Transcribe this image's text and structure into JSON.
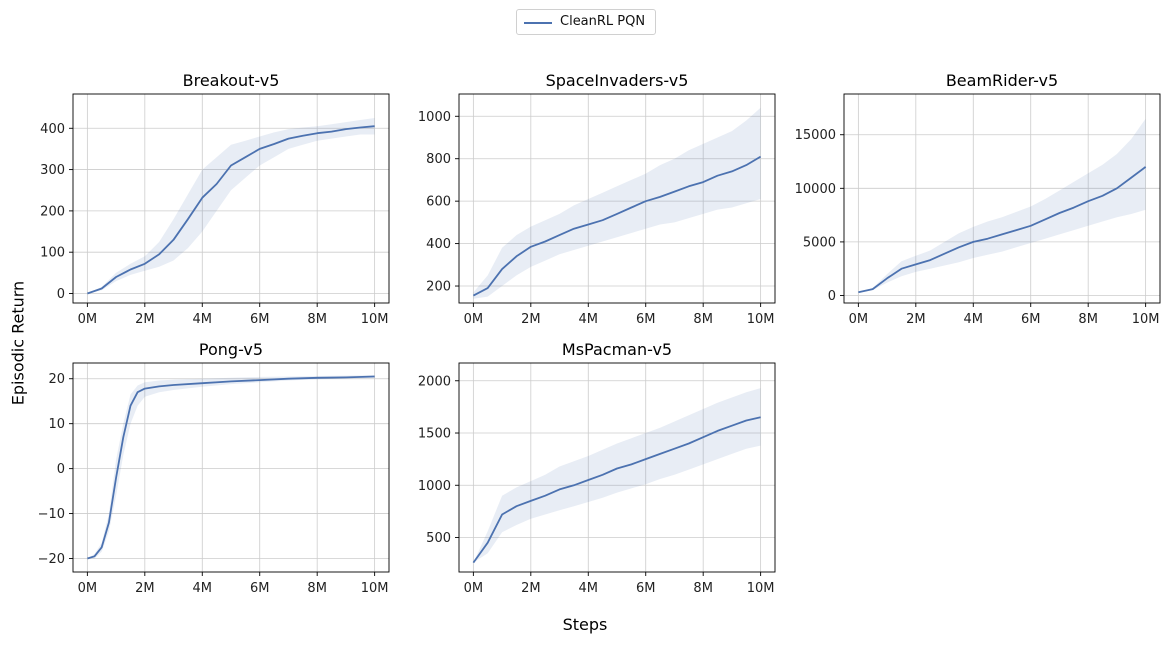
{
  "legend": {
    "label": "CleanRL PQN"
  },
  "colors": {
    "line": "#4c72b0",
    "band": "#4c72b0",
    "grid": "#cccccc"
  },
  "supxlabel": "Steps",
  "supylabel": "Episodic Return",
  "chart_data": [
    {
      "type": "line",
      "title": "Breakout-v5",
      "xlabel": "",
      "ylabel": "",
      "xlim": [
        -0.5,
        10.5
      ],
      "ylim": [
        -23,
        483
      ],
      "xticks": [
        0,
        2,
        4,
        6,
        8,
        10
      ],
      "xticklabels": [
        "0M",
        "2M",
        "4M",
        "6M",
        "8M",
        "10M"
      ],
      "yticks": [
        0,
        100,
        200,
        300,
        400
      ],
      "yticklabels": [
        "0",
        "100",
        "200",
        "300",
        "400"
      ],
      "grid": true,
      "series": [
        {
          "name": "CleanRL PQN",
          "x": [
            0,
            0.5,
            1,
            1.5,
            2,
            2.5,
            3,
            3.5,
            4,
            4.5,
            5,
            5.5,
            6,
            6.5,
            7,
            7.5,
            8,
            8.5,
            9,
            9.5,
            10
          ],
          "mean": [
            0,
            12,
            40,
            58,
            72,
            95,
            130,
            180,
            232,
            265,
            310,
            330,
            350,
            362,
            375,
            382,
            388,
            392,
            398,
            402,
            405
          ],
          "lower": [
            0,
            8,
            30,
            45,
            55,
            65,
            80,
            110,
            150,
            200,
            250,
            280,
            310,
            330,
            350,
            360,
            370,
            375,
            380,
            385,
            385
          ],
          "upper": [
            0,
            16,
            50,
            72,
            90,
            125,
            180,
            240,
            300,
            330,
            360,
            370,
            380,
            390,
            398,
            402,
            405,
            410,
            415,
            420,
            425
          ]
        }
      ]
    },
    {
      "type": "line",
      "title": "SpaceInvaders-v5",
      "xlabel": "",
      "ylabel": "",
      "xlim": [
        -0.5,
        10.5
      ],
      "ylim": [
        120,
        1105
      ],
      "xticks": [
        0,
        2,
        4,
        6,
        8,
        10
      ],
      "xticklabels": [
        "0M",
        "2M",
        "4M",
        "6M",
        "8M",
        "10M"
      ],
      "yticks": [
        200,
        400,
        600,
        800,
        1000
      ],
      "yticklabels": [
        "200",
        "400",
        "600",
        "800",
        "1000"
      ],
      "grid": true,
      "series": [
        {
          "name": "CleanRL PQN",
          "x": [
            0,
            0.5,
            1,
            1.5,
            2,
            2.5,
            3,
            3.5,
            4,
            4.5,
            5,
            5.5,
            6,
            6.5,
            7,
            7.5,
            8,
            8.5,
            9,
            9.5,
            10
          ],
          "mean": [
            155,
            190,
            280,
            340,
            385,
            410,
            440,
            470,
            490,
            510,
            540,
            570,
            600,
            620,
            645,
            670,
            690,
            720,
            740,
            770,
            810
          ],
          "lower": [
            140,
            150,
            200,
            250,
            290,
            320,
            350,
            370,
            390,
            410,
            430,
            450,
            470,
            490,
            500,
            520,
            540,
            560,
            570,
            590,
            610
          ],
          "upper": [
            170,
            250,
            380,
            440,
            480,
            510,
            540,
            580,
            610,
            640,
            670,
            700,
            730,
            770,
            800,
            840,
            870,
            900,
            930,
            980,
            1040
          ]
        }
      ]
    },
    {
      "type": "line",
      "title": "BeamRider-v5",
      "xlabel": "",
      "ylabel": "",
      "xlim": [
        -0.5,
        10.5
      ],
      "ylim": [
        -700,
        18800
      ],
      "xticks": [
        0,
        2,
        4,
        6,
        8,
        10
      ],
      "xticklabels": [
        "0M",
        "2M",
        "4M",
        "6M",
        "8M",
        "10M"
      ],
      "yticks": [
        0,
        5000,
        10000,
        15000
      ],
      "yticklabels": [
        "0",
        "5000",
        "10000",
        "15000"
      ],
      "grid": true,
      "series": [
        {
          "name": "CleanRL PQN",
          "x": [
            0,
            0.5,
            1,
            1.5,
            2,
            2.5,
            3,
            3.5,
            4,
            4.5,
            5,
            5.5,
            6,
            6.5,
            7,
            7.5,
            8,
            8.5,
            9,
            9.5,
            10
          ],
          "mean": [
            300,
            600,
            1600,
            2500,
            2900,
            3300,
            3900,
            4500,
            5000,
            5300,
            5700,
            6100,
            6500,
            7100,
            7700,
            8200,
            8800,
            9300,
            10000,
            11000,
            12000
          ],
          "lower": [
            300,
            500,
            1200,
            1800,
            2200,
            2500,
            2800,
            3100,
            3500,
            3800,
            4100,
            4500,
            4900,
            5300,
            5700,
            6100,
            6500,
            6900,
            7300,
            7600,
            8000
          ],
          "upper": [
            300,
            700,
            2000,
            3200,
            3700,
            4200,
            5000,
            5800,
            6400,
            6900,
            7300,
            7800,
            8300,
            9000,
            9800,
            10600,
            11400,
            12200,
            13200,
            14600,
            16500
          ]
        }
      ]
    },
    {
      "type": "line",
      "title": "Pong-v5",
      "xlabel": "",
      "ylabel": "",
      "xlim": [
        -0.5,
        10.5
      ],
      "ylim": [
        -23,
        23.5
      ],
      "xticks": [
        0,
        2,
        4,
        6,
        8,
        10
      ],
      "xticklabels": [
        "0M",
        "2M",
        "4M",
        "6M",
        "8M",
        "10M"
      ],
      "yticks": [
        -20,
        -10,
        0,
        10,
        20
      ],
      "yticklabels": [
        "−20",
        "−10",
        "0",
        "10",
        "20"
      ],
      "grid": true,
      "series": [
        {
          "name": "CleanRL PQN",
          "x": [
            0,
            0.25,
            0.5,
            0.75,
            1,
            1.25,
            1.5,
            1.75,
            2,
            2.5,
            3,
            4,
            5,
            6,
            7,
            8,
            9,
            10
          ],
          "mean": [
            -20,
            -19.5,
            -17.5,
            -12,
            -2,
            7,
            14,
            17,
            17.8,
            18.3,
            18.6,
            19,
            19.4,
            19.7,
            20,
            20.2,
            20.3,
            20.5
          ],
          "lower": [
            -20,
            -20,
            -18.5,
            -14,
            -6,
            3,
            10,
            14,
            16,
            17,
            17.5,
            18.2,
            18.8,
            19.2,
            19.6,
            19.9,
            20,
            20.2
          ],
          "upper": [
            -20,
            -19,
            -16.5,
            -10,
            2,
            10,
            16.5,
            18.5,
            19.2,
            19.6,
            19.8,
            20,
            20.2,
            20.4,
            20.5,
            20.6,
            20.7,
            20.8
          ]
        }
      ]
    },
    {
      "type": "line",
      "title": "MsPacman-v5",
      "xlabel": "",
      "ylabel": "",
      "xlim": [
        -0.5,
        10.5
      ],
      "ylim": [
        170,
        2170
      ],
      "xticks": [
        0,
        2,
        4,
        6,
        8,
        10
      ],
      "xticklabels": [
        "0M",
        "2M",
        "4M",
        "6M",
        "8M",
        "10M"
      ],
      "yticks": [
        500,
        1000,
        1500,
        2000
      ],
      "yticklabels": [
        "500",
        "1000",
        "1500",
        "2000"
      ],
      "grid": true,
      "series": [
        {
          "name": "CleanRL PQN",
          "x": [
            0,
            0.5,
            1,
            1.5,
            2,
            2.5,
            3,
            3.5,
            4,
            4.5,
            5,
            5.5,
            6,
            6.5,
            7,
            7.5,
            8,
            8.5,
            9,
            9.5,
            10
          ],
          "mean": [
            260,
            450,
            720,
            800,
            850,
            900,
            960,
            1000,
            1050,
            1100,
            1160,
            1200,
            1250,
            1300,
            1350,
            1400,
            1460,
            1520,
            1570,
            1620,
            1650
          ],
          "lower": [
            260,
            350,
            550,
            620,
            680,
            720,
            760,
            800,
            840,
            880,
            930,
            970,
            1010,
            1060,
            1100,
            1150,
            1200,
            1250,
            1300,
            1350,
            1380
          ],
          "upper": [
            260,
            560,
            900,
            980,
            1040,
            1100,
            1180,
            1230,
            1280,
            1340,
            1400,
            1450,
            1500,
            1550,
            1610,
            1670,
            1730,
            1790,
            1840,
            1890,
            1930
          ]
        }
      ]
    }
  ]
}
